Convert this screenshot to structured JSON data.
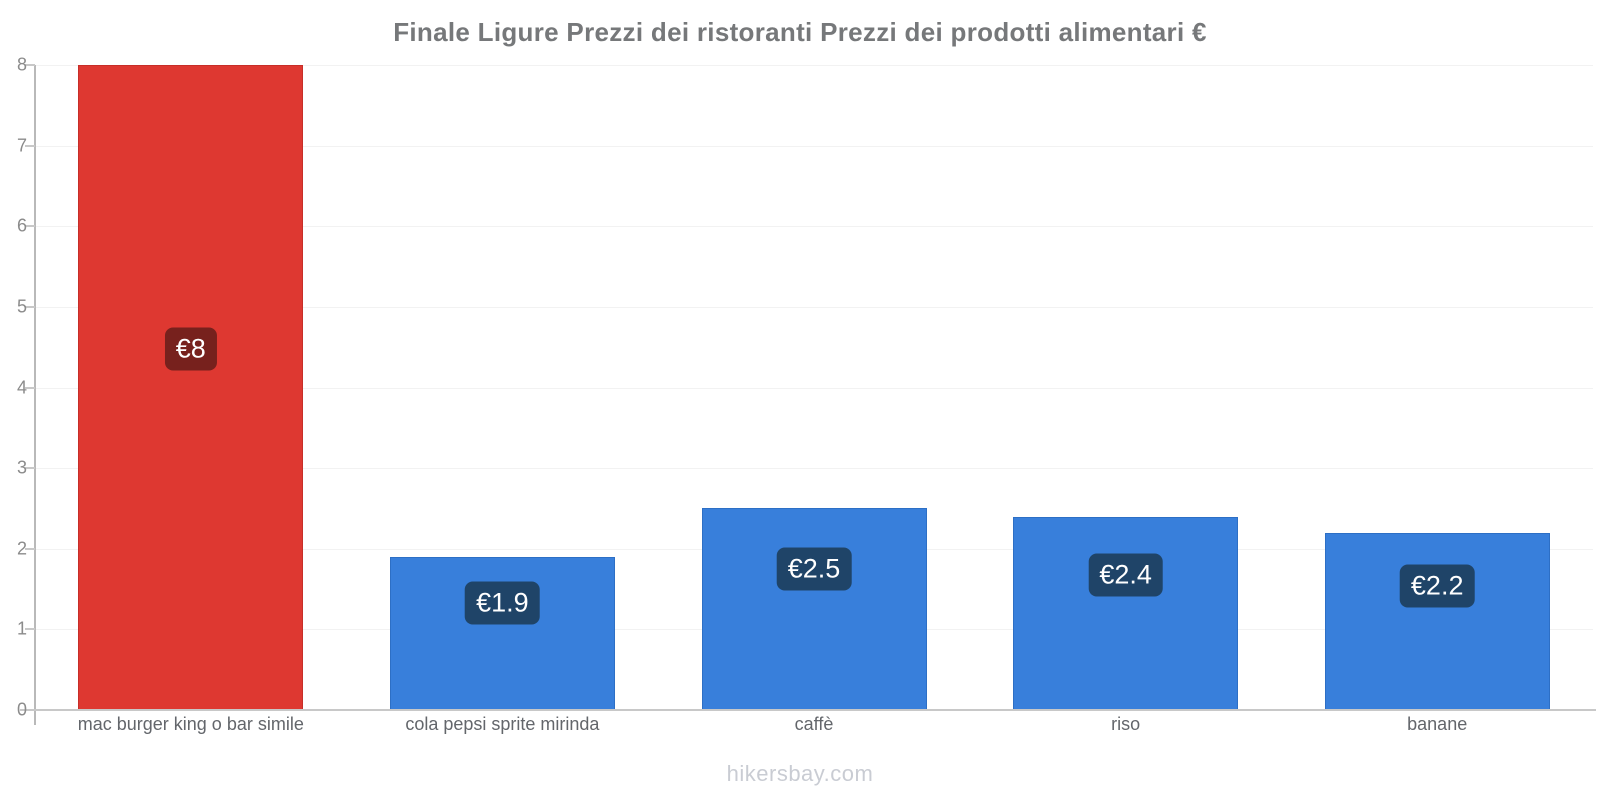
{
  "title": "Finale Ligure Prezzi dei ristoranti Prezzi dei prodotti alimentari €",
  "watermark": "hikersbay.com",
  "chart_data": {
    "type": "bar",
    "title": "Finale Ligure Prezzi dei ristoranti Prezzi dei prodotti alimentari €",
    "categories": [
      "mac burger king o bar simile",
      "cola pepsi sprite mirinda",
      "caffè",
      "riso",
      "banane"
    ],
    "values": [
      8,
      1.9,
      2.5,
      2.4,
      2.2
    ],
    "value_labels": [
      "€8",
      "€1.9",
      "€2.5",
      "€2.4",
      "€2.2"
    ],
    "currency": "€",
    "xlabel": "",
    "ylabel": "",
    "ylim": [
      0,
      8
    ],
    "yticks": [
      0,
      1,
      2,
      3,
      4,
      5,
      6,
      7,
      8
    ],
    "grid": "horizontal-faint",
    "legend": "none",
    "bar_colors": [
      "#de3831",
      "#387fdb",
      "#387fdb",
      "#387fdb",
      "#387fdb"
    ],
    "bar_border_colors": [
      "#c72e28",
      "#2d6fc5",
      "#2d6fc5",
      "#2d6fc5",
      "#2d6fc5"
    ],
    "badge_colors": [
      "#77211d",
      "#1f4468",
      "#1f4468",
      "#1f4468",
      "#1f4468"
    ],
    "axis_color": "#b9b9b9",
    "watermark": "hikersbay.com"
  }
}
